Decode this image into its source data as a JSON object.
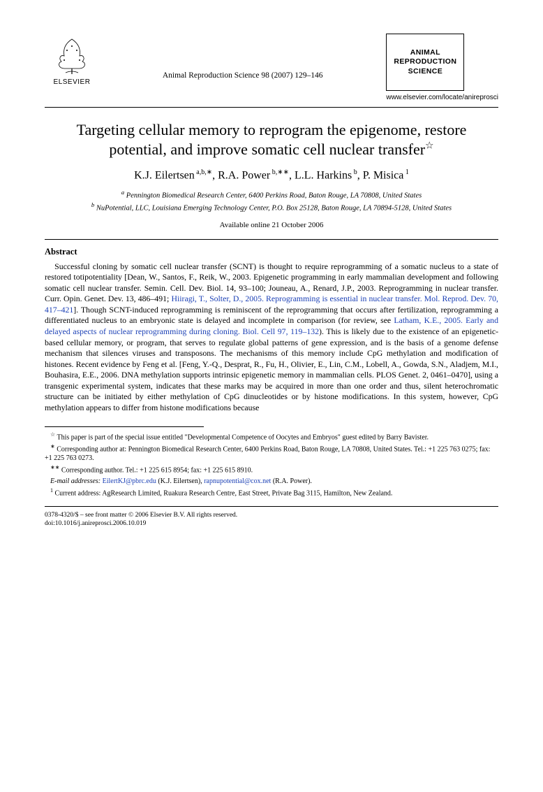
{
  "header": {
    "publisher": "ELSEVIER",
    "journal_ref": "Animal Reproduction Science 98 (2007) 129–146",
    "journal_box_line1": "ANIMAL",
    "journal_box_line2": "REPRODUCTION",
    "journal_box_line3": "SCIENCE",
    "journal_url": "www.elsevier.com/locate/anireprosci"
  },
  "title": "Targeting cellular memory to reprogram the epigenome, restore potential, and improve somatic cell nuclear transfer",
  "title_note_marker": "☆",
  "authors_html": "K.J. Eilertsen<sup> a,b,∗</sup>, R.A. Power<sup> b,∗∗</sup>, L.L. Harkins<sup> b</sup>, P. Misica<sup> 1</sup>",
  "affiliations": {
    "a": "Pennington Biomedical Research Center, 6400 Perkins Road, Baton Rouge, LA 70808, United States",
    "b": "NuPotential, LLC, Louisiana Emerging Technology Center, P.O. Box 25128, Baton Rouge, LA 70894-5128, United States"
  },
  "available": "Available online 21 October 2006",
  "abstract_heading": "Abstract",
  "abstract_body": "Successful cloning by somatic cell nuclear transfer (SCNT) is thought to require reprogramming of a somatic nucleus to a state of restored totipotentiality [Dean, W., Santos, F., Reik, W., 2003. Epigenetic programming in early mammalian development and following somatic cell nuclear transfer. Semin. Cell. Dev. Biol. 14, 93–100; Jouneau, A., Renard, J.P., 2003. Reprogramming in nuclear transfer. Curr. Opin. Genet. Dev. 13, 486–491; <span class=\"link\">Hiiragi, T., Solter, D., 2005. Reprogramming is essential in nuclear transfer. Mol. Reprod. Dev. 70, 417–421</span>]. Though SCNT-induced reprogramming is reminiscent of the reprogramming that occurs after fertilization, reprogramming a differentiated nucleus to an embryonic state is delayed and incomplete in comparison (for review, see <span class=\"link\">Latham, K.E., 2005. Early and delayed aspects of nuclear reprogramming during cloning. Biol. Cell 97, 119–132</span>). This is likely due to the existence of an epigenetic-based cellular memory, or program, that serves to regulate global patterns of gene expression, and is the basis of a genome defense mechanism that silences viruses and transposons. The mechanisms of this memory include CpG methylation and modification of histones. Recent evidence by Feng et al. [Feng, Y.-Q., Desprat, R., Fu, H., Olivier, E., Lin, C.M., Lobell, A., Gowda, S.N., Aladjem, M.I., Bouhasira, E.E., 2006. DNA methylation supports intrinsic epigenetic memory in mammalian cells. PLOS Genet. 2, 0461–0470], using a transgenic experimental system, indicates that these marks may be acquired in more than one order and thus, silent heterochromatic structure can be initiated by either methylation of CpG dinucleotides or by histone modifications. In this system, however, CpG methylation appears to differ from histone modifications because",
  "footnotes": {
    "star": "This paper is part of the special issue entitled \"Developmental Competence of Oocytes and Embryos\" guest edited by Barry Bavister.",
    "corr1": "Corresponding author at: Pennington Biomedical Research Center, 6400 Perkins Road, Baton Rouge, LA 70808, United States. Tel.: +1 225 763 0275; fax: +1 225 763 0273.",
    "corr2": "Corresponding author. Tel.: +1 225 615 8954; fax: +1 225 615 8910.",
    "email_label": "E-mail addresses:",
    "email1": "EilertKJ@pbrc.edu",
    "email1_who": "(K.J. Eilertsen),",
    "email2": "rapnupotential@cox.net",
    "email2_who": "(R.A. Power).",
    "note1": "Current address: AgResearch Limited, Ruakura Research Centre, East Street, Private Bag 3115, Hamilton, New Zealand."
  },
  "copyright": {
    "line1": "0378-4320/$ – see front matter © 2006 Elsevier B.V. All rights reserved.",
    "line2": "doi:10.1016/j.anireprosci.2006.10.019"
  },
  "colors": {
    "link": "#1a3fb5",
    "text": "#000000",
    "bg": "#ffffff"
  }
}
